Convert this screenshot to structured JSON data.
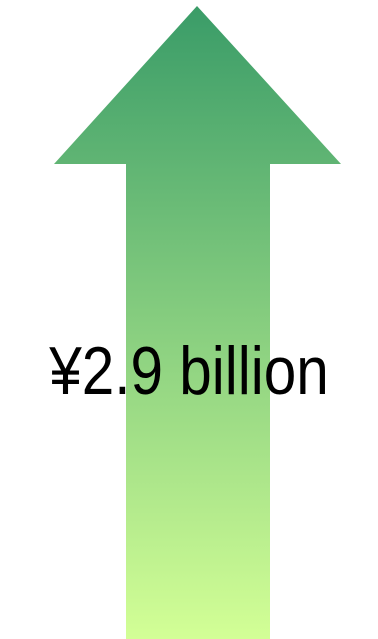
{
  "graphic": {
    "shape": "upward-arrow",
    "gradient_top_color": "#3a9c68",
    "gradient_bottom_color": "#d3ff96"
  },
  "label": {
    "text": "¥2.9 billion"
  }
}
